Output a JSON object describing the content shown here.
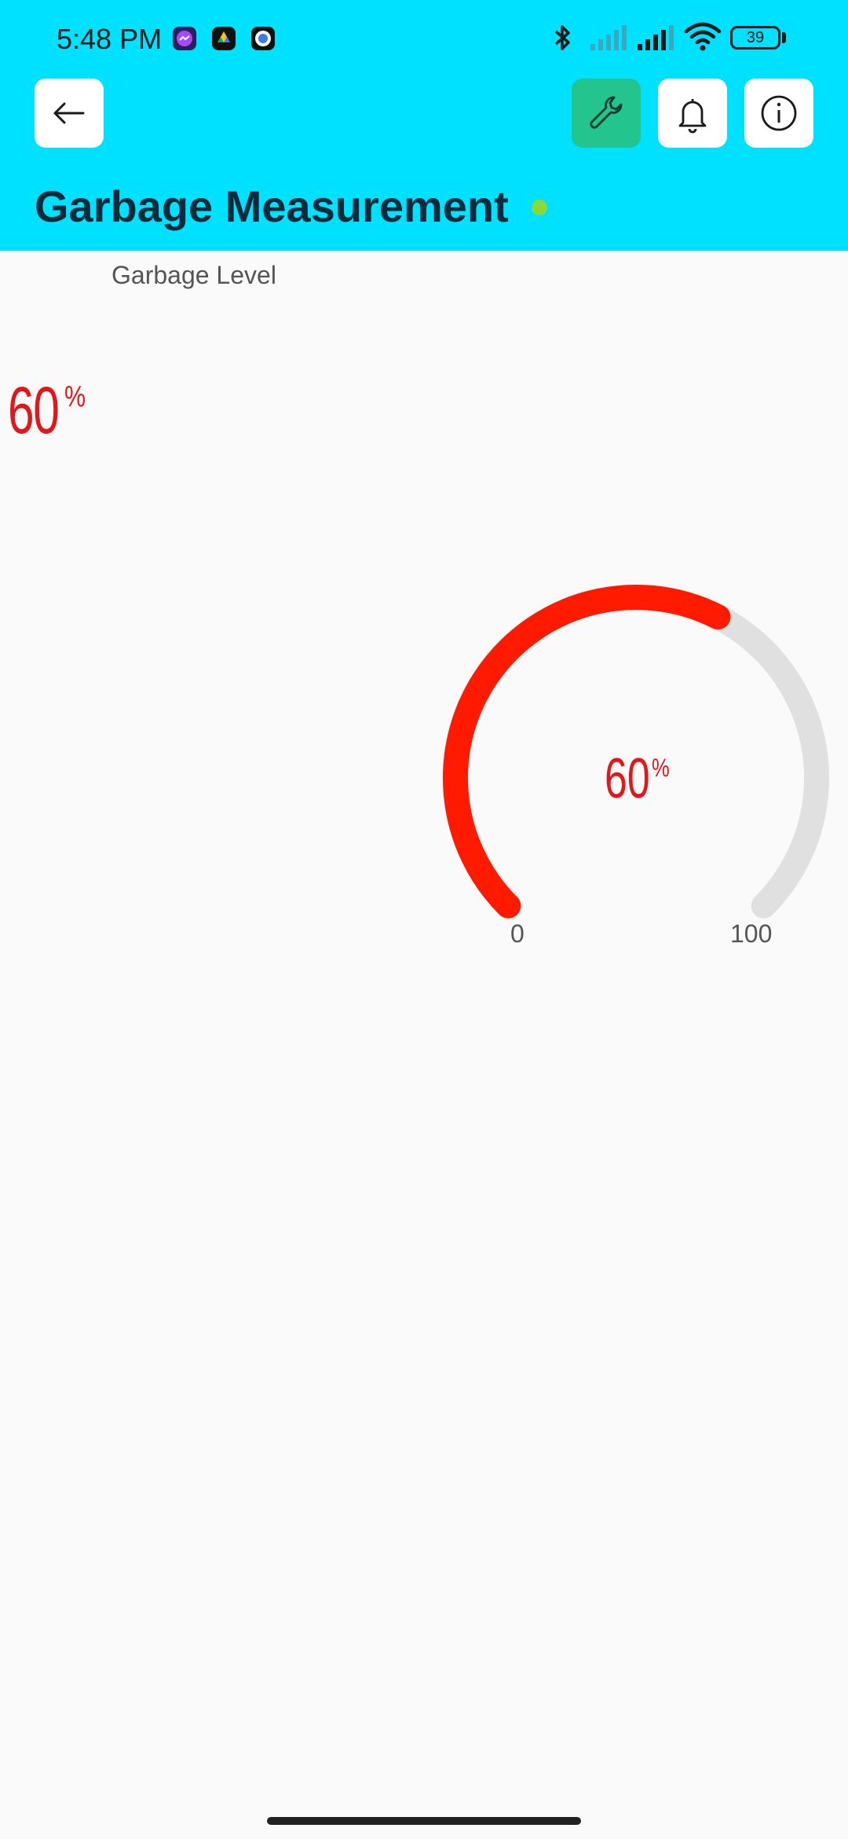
{
  "status_bar": {
    "time": "5:48 PM",
    "battery": "39",
    "notification_icons": [
      "messenger-icon",
      "drive-icon",
      "browser-icon"
    ],
    "right_icons": [
      "bluetooth-icon",
      "signal-icon",
      "signal-icon",
      "wifi-icon",
      "battery-icon"
    ]
  },
  "toolbar": {
    "back_icon": "arrow-left-icon",
    "actions": [
      "wrench-icon",
      "bell-icon",
      "info-icon"
    ],
    "accent_color": "#23c48e"
  },
  "page": {
    "title": "Garbage Measurement",
    "status_dot_color": "#8ad93a",
    "header_color": "#00e0ff"
  },
  "widgets": {
    "label": "Garbage Level",
    "value_display": {
      "value": "60",
      "unit": "%",
      "color": "#e0181b"
    },
    "gauge": {
      "value": 60,
      "value_text": "60",
      "unit": "%",
      "min": 0,
      "max": 100,
      "min_label": "0",
      "max_label": "100",
      "fill_color": "#ff1a00",
      "track_color": "#e0e0e0"
    }
  }
}
